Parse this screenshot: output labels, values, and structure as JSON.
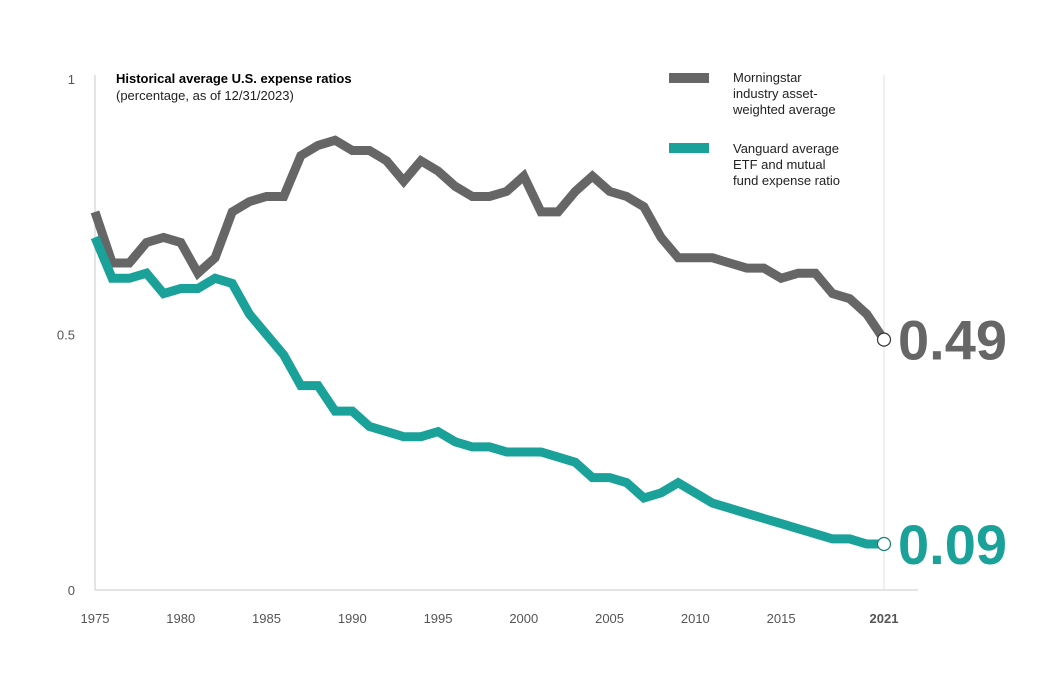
{
  "chart_data": {
    "type": "line",
    "title": "Historical average U.S. expense ratios",
    "subtitle": "(percentage, as of 12/31/2023)",
    "xlabel": "",
    "ylabel": "",
    "xlim": [
      1975,
      2021
    ],
    "ylim": [
      0,
      1
    ],
    "grid": false,
    "x_ticks": [
      {
        "value": 1975,
        "label": "1975",
        "bold": false
      },
      {
        "value": 1980,
        "label": "1980",
        "bold": false
      },
      {
        "value": 1985,
        "label": "1985",
        "bold": false
      },
      {
        "value": 1990,
        "label": "1990",
        "bold": false
      },
      {
        "value": 1995,
        "label": "1995",
        "bold": false
      },
      {
        "value": 2000,
        "label": "2000",
        "bold": false
      },
      {
        "value": 2005,
        "label": "2005",
        "bold": false
      },
      {
        "value": 2010,
        "label": "2010",
        "bold": false
      },
      {
        "value": 2015,
        "label": "2015",
        "bold": false
      },
      {
        "value": 2021,
        "label": "2021",
        "bold": true
      }
    ],
    "y_ticks": [
      {
        "value": 0,
        "label": "0"
      },
      {
        "value": 0.5,
        "label": "0.5"
      },
      {
        "value": 1,
        "label": "1"
      }
    ],
    "legend_position": "top-right",
    "series": [
      {
        "name": "Morningstar industry asset-weighted average",
        "legend_lines": [
          "Morningstar",
          "industry asset-",
          "weighted average"
        ],
        "color": "#666666",
        "end_label": "0.49",
        "x": [
          1975,
          1976,
          1977,
          1978,
          1979,
          1980,
          1981,
          1982,
          1983,
          1984,
          1985,
          1986,
          1987,
          1988,
          1989,
          1990,
          1991,
          1992,
          1993,
          1994,
          1995,
          1996,
          1997,
          1998,
          1999,
          2000,
          2001,
          2002,
          2003,
          2004,
          2005,
          2006,
          2007,
          2008,
          2009,
          2010,
          2011,
          2012,
          2013,
          2014,
          2015,
          2016,
          2017,
          2018,
          2019,
          2020,
          2021
        ],
        "values": [
          0.74,
          0.64,
          0.64,
          0.68,
          0.69,
          0.68,
          0.62,
          0.65,
          0.74,
          0.76,
          0.77,
          0.77,
          0.85,
          0.87,
          0.88,
          0.86,
          0.86,
          0.84,
          0.8,
          0.84,
          0.82,
          0.79,
          0.77,
          0.77,
          0.78,
          0.81,
          0.74,
          0.74,
          0.78,
          0.81,
          0.78,
          0.77,
          0.75,
          0.69,
          0.65,
          0.65,
          0.65,
          0.64,
          0.63,
          0.63,
          0.61,
          0.62,
          0.62,
          0.58,
          0.57,
          0.54,
          0.49
        ]
      },
      {
        "name": "Vanguard average ETF and mutual fund expense ratio",
        "legend_lines": [
          "Vanguard average",
          "ETF and mutual",
          "fund expense ratio"
        ],
        "color": "#1aa19a",
        "end_label": "0.09",
        "x": [
          1975,
          1976,
          1977,
          1978,
          1979,
          1980,
          1981,
          1982,
          1983,
          1984,
          1985,
          1986,
          1987,
          1988,
          1989,
          1990,
          1991,
          1992,
          1993,
          1994,
          1995,
          1996,
          1997,
          1998,
          1999,
          2000,
          2001,
          2002,
          2003,
          2004,
          2005,
          2006,
          2007,
          2008,
          2009,
          2010,
          2011,
          2012,
          2013,
          2014,
          2015,
          2016,
          2017,
          2018,
          2019,
          2020,
          2021
        ],
        "values": [
          0.69,
          0.61,
          0.61,
          0.62,
          0.58,
          0.59,
          0.59,
          0.61,
          0.6,
          0.54,
          0.5,
          0.46,
          0.4,
          0.4,
          0.35,
          0.35,
          0.32,
          0.31,
          0.3,
          0.3,
          0.31,
          0.29,
          0.28,
          0.28,
          0.27,
          0.27,
          0.27,
          0.26,
          0.25,
          0.22,
          0.22,
          0.21,
          0.18,
          0.19,
          0.21,
          0.19,
          0.17,
          0.16,
          0.15,
          0.14,
          0.13,
          0.12,
          0.11,
          0.1,
          0.1,
          0.09,
          0.09
        ]
      }
    ]
  }
}
